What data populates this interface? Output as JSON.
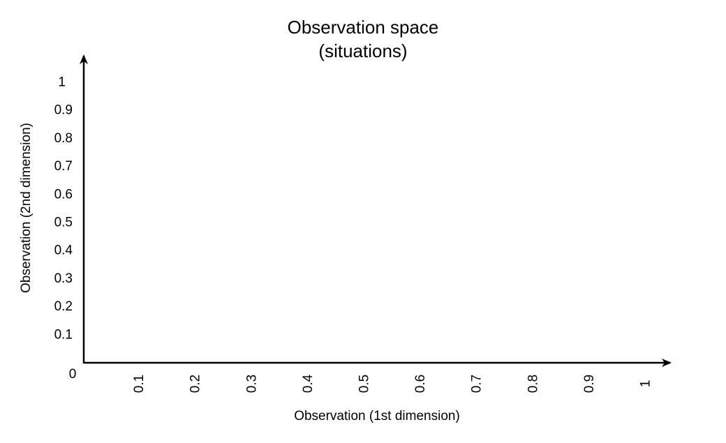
{
  "title": {
    "line1": "Observation space",
    "line2": "(situations)"
  },
  "chart_data": {
    "type": "scatter",
    "title": "Observation space (situations)",
    "xlabel": "Observation (1st dimension)",
    "ylabel": "Observation (2nd dimension)",
    "xlim": [
      0,
      1
    ],
    "ylim": [
      0,
      1
    ],
    "origin_label": "0",
    "x_ticks": [
      "0.1",
      "0.2",
      "0.3",
      "0.4",
      "0.5",
      "0.6",
      "0.7",
      "0.8",
      "0.9",
      "1"
    ],
    "y_ticks": [
      "0.1",
      "0.2",
      "0.3",
      "0.4",
      "0.5",
      "0.6",
      "0.7",
      "0.8",
      "0.9",
      "1"
    ],
    "grid": false,
    "series": []
  },
  "colors": {
    "axis": "#000000",
    "text": "#000000",
    "background": "#ffffff"
  }
}
